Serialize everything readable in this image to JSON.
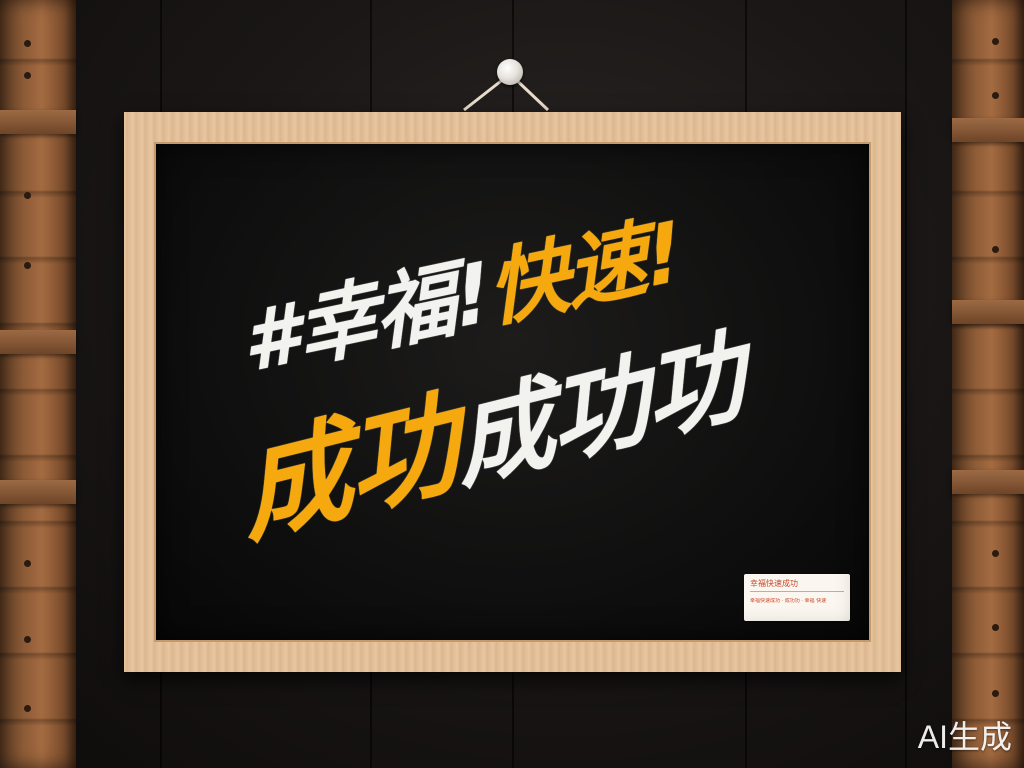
{
  "board": {
    "line1": {
      "white_text": "#幸福!",
      "yellow_text": "快速!"
    },
    "line2": {
      "yellow_text": "成功",
      "white_text": "成功功"
    },
    "colors": {
      "board": "#0b0b0b",
      "white_ink": "#f2f2ee",
      "yellow_ink": "#f6a90f",
      "frame_wood": "#e9c7a0"
    }
  },
  "sticker": {
    "title": "幸福快速成功",
    "subtitle": "幸福快速成功 · 成功功 · 幸福 快速"
  },
  "watermark": {
    "text": "AI生成"
  }
}
